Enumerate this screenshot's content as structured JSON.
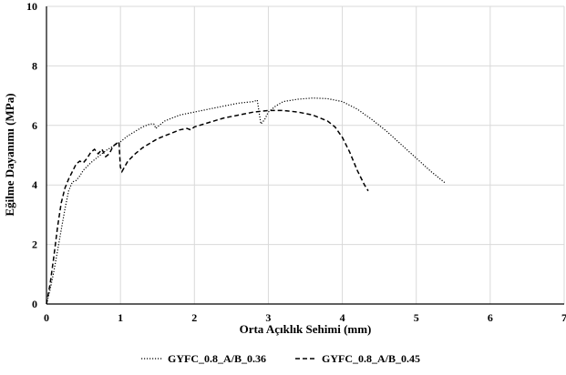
{
  "chart_data": {
    "type": "line",
    "title": "",
    "xlabel": "Orta Açıklık Sehimi (mm)",
    "ylabel": "Eğilme Dayanımı (MPa)",
    "xlim": [
      0,
      7
    ],
    "ylim": [
      0,
      10
    ],
    "xticks": [
      "0",
      "1",
      "2",
      "3",
      "4",
      "5",
      "6",
      "7"
    ],
    "yticks": [
      "0",
      "2",
      "4",
      "6",
      "8",
      "10"
    ],
    "grid": true,
    "legend": "bottom",
    "series": [
      {
        "name": "GYFC_0.8_A/B_0.36",
        "style": "dotted",
        "color": "#000000",
        "points": [
          [
            0,
            0
          ],
          [
            0.05,
            0.5
          ],
          [
            0.1,
            1.1
          ],
          [
            0.15,
            1.8
          ],
          [
            0.2,
            2.5
          ],
          [
            0.25,
            3.2
          ],
          [
            0.3,
            3.8
          ],
          [
            0.35,
            4.1
          ],
          [
            0.4,
            4.15
          ],
          [
            0.45,
            4.3
          ],
          [
            0.5,
            4.5
          ],
          [
            0.6,
            4.75
          ],
          [
            0.7,
            4.95
          ],
          [
            0.8,
            5.15
          ],
          [
            0.9,
            5.3
          ],
          [
            1.0,
            5.45
          ],
          [
            1.1,
            5.65
          ],
          [
            1.2,
            5.8
          ],
          [
            1.3,
            5.95
          ],
          [
            1.4,
            6.05
          ],
          [
            1.45,
            6.05
          ],
          [
            1.48,
            5.9
          ],
          [
            1.5,
            5.95
          ],
          [
            1.6,
            6.15
          ],
          [
            1.8,
            6.35
          ],
          [
            2.0,
            6.45
          ],
          [
            2.2,
            6.55
          ],
          [
            2.4,
            6.65
          ],
          [
            2.6,
            6.75
          ],
          [
            2.8,
            6.8
          ],
          [
            2.85,
            6.85
          ],
          [
            2.88,
            6.35
          ],
          [
            2.9,
            6.05
          ],
          [
            2.95,
            6.2
          ],
          [
            3.0,
            6.45
          ],
          [
            3.1,
            6.65
          ],
          [
            3.2,
            6.8
          ],
          [
            3.4,
            6.88
          ],
          [
            3.6,
            6.92
          ],
          [
            3.8,
            6.9
          ],
          [
            3.9,
            6.85
          ],
          [
            4.0,
            6.8
          ],
          [
            4.2,
            6.55
          ],
          [
            4.4,
            6.2
          ],
          [
            4.6,
            5.8
          ],
          [
            4.8,
            5.35
          ],
          [
            5.0,
            4.9
          ],
          [
            5.2,
            4.45
          ],
          [
            5.4,
            4.05
          ]
        ]
      },
      {
        "name": "GYFC_0.8_A/B_0.45",
        "style": "dashed",
        "color": "#000000",
        "points": [
          [
            0,
            0
          ],
          [
            0.05,
            0.7
          ],
          [
            0.1,
            1.6
          ],
          [
            0.15,
            2.6
          ],
          [
            0.2,
            3.4
          ],
          [
            0.25,
            3.9
          ],
          [
            0.3,
            4.2
          ],
          [
            0.35,
            4.45
          ],
          [
            0.4,
            4.7
          ],
          [
            0.45,
            4.8
          ],
          [
            0.5,
            4.75
          ],
          [
            0.55,
            4.9
          ],
          [
            0.6,
            5.1
          ],
          [
            0.65,
            5.2
          ],
          [
            0.7,
            5.05
          ],
          [
            0.75,
            5.2
          ],
          [
            0.8,
            4.95
          ],
          [
            0.85,
            5.05
          ],
          [
            0.9,
            5.3
          ],
          [
            0.95,
            5.4
          ],
          [
            0.98,
            5.45
          ],
          [
            1.0,
            4.6
          ],
          [
            1.02,
            4.45
          ],
          [
            1.1,
            4.8
          ],
          [
            1.2,
            5.05
          ],
          [
            1.3,
            5.25
          ],
          [
            1.4,
            5.4
          ],
          [
            1.5,
            5.55
          ],
          [
            1.6,
            5.65
          ],
          [
            1.7,
            5.75
          ],
          [
            1.8,
            5.85
          ],
          [
            1.9,
            5.9
          ],
          [
            1.95,
            5.85
          ],
          [
            2.0,
            5.95
          ],
          [
            2.2,
            6.1
          ],
          [
            2.4,
            6.25
          ],
          [
            2.6,
            6.35
          ],
          [
            2.8,
            6.45
          ],
          [
            3.0,
            6.5
          ],
          [
            3.2,
            6.5
          ],
          [
            3.4,
            6.45
          ],
          [
            3.6,
            6.35
          ],
          [
            3.8,
            6.15
          ],
          [
            3.9,
            5.95
          ],
          [
            4.0,
            5.6
          ],
          [
            4.1,
            5.1
          ],
          [
            4.2,
            4.5
          ],
          [
            4.3,
            4.0
          ],
          [
            4.35,
            3.8
          ]
        ]
      }
    ]
  }
}
